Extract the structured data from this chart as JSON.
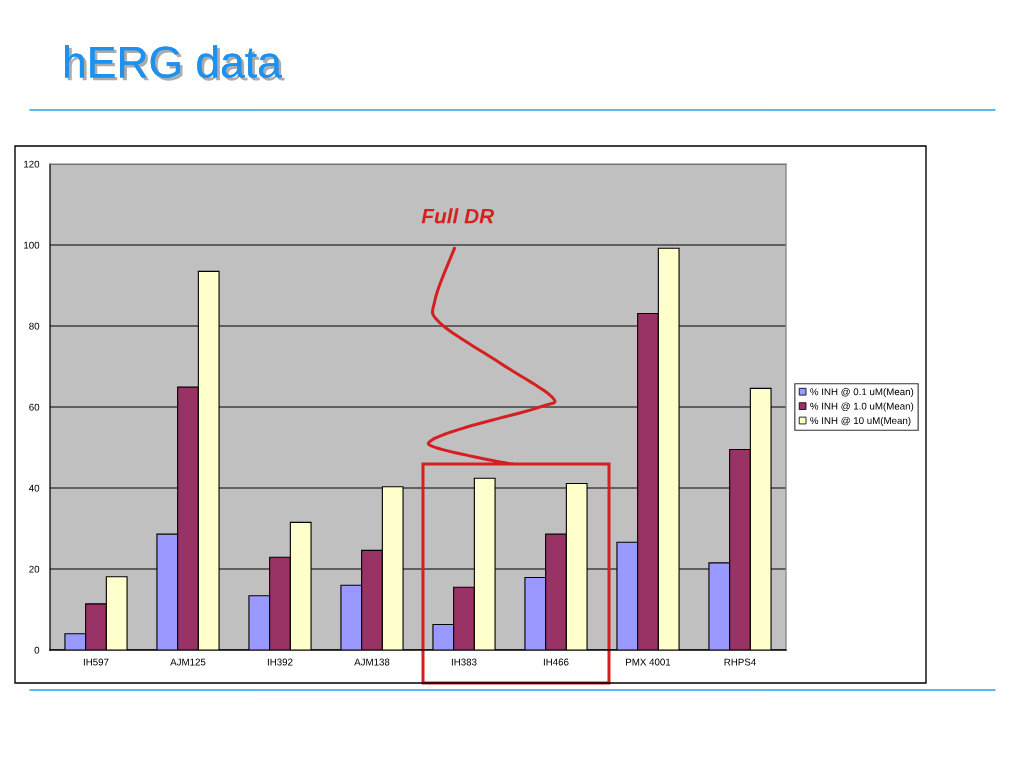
{
  "chart_data": {
    "type": "bar",
    "title": "hERG data",
    "categories": [
      "IH597",
      "AJM125",
      "IH392",
      "AJM138",
      "IH383",
      "IH466",
      "PMX 4001",
      "RHPS4"
    ],
    "series": [
      {
        "name": "% INH @ 0.1 uM(Mean)",
        "color": "#9999ff",
        "values": [
          4.0,
          28.6,
          13.4,
          16.0,
          6.3,
          17.9,
          26.6,
          21.5
        ]
      },
      {
        "name": "% INH @ 1.0 uM(Mean)",
        "color": "#993366",
        "values": [
          11.4,
          64.9,
          22.9,
          24.6,
          15.5,
          28.6,
          83.1,
          49.5
        ]
      },
      {
        "name": "% INH @ 10 uM(Mean)",
        "color": "#ffffcc",
        "values": [
          18.1,
          93.5,
          31.5,
          40.3,
          42.4,
          41.1,
          99.2,
          64.6
        ]
      }
    ],
    "ylim": [
      0,
      120
    ],
    "yticks": [
      0,
      20,
      40,
      60,
      80,
      100,
      120
    ],
    "grid": "y",
    "legend": "right",
    "annotations": [
      "Full DR"
    ]
  }
}
